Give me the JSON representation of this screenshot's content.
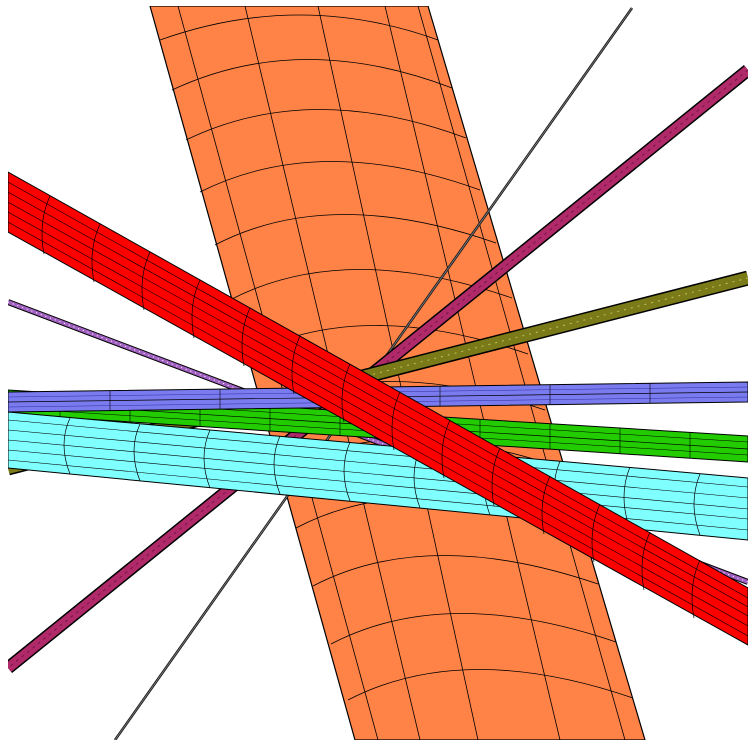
{
  "scene": {
    "background": "#ffffff",
    "outline_color": "#000000",
    "tubes": [
      {
        "id": "large-orange-cylinder",
        "color": "#ff8247"
      },
      {
        "id": "red-tube",
        "color": "#ff0000"
      },
      {
        "id": "cyan-tube",
        "color": "#80ffff"
      },
      {
        "id": "blue-tube",
        "color": "#7b7bf0"
      },
      {
        "id": "green-tube",
        "color": "#22cc00"
      },
      {
        "id": "olive-rod",
        "color": "#7a7a18"
      },
      {
        "id": "magenta-rod",
        "color": "#b02a6a"
      },
      {
        "id": "purple-thin-rod",
        "color": "#a060c0"
      },
      {
        "id": "dark-thin-line",
        "color": "#202020"
      }
    ]
  }
}
